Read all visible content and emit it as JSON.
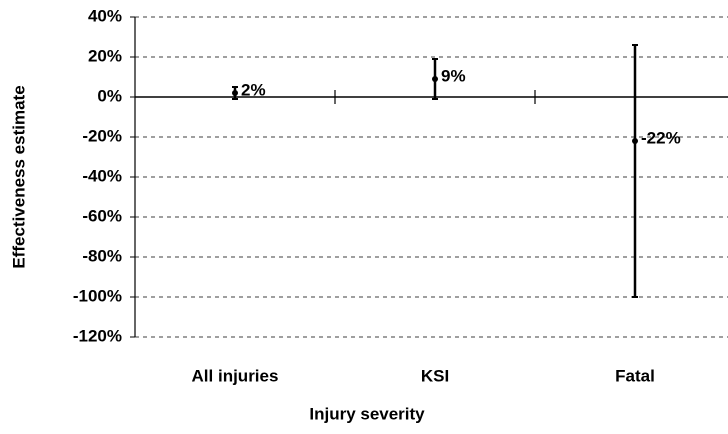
{
  "chart_data": {
    "type": "errorbar",
    "x_label": "Injury severity",
    "y_label": "Effectiveness estimate",
    "categories": [
      "All injuries",
      "KSI",
      "Fatal"
    ],
    "series": [
      {
        "color": "#000000",
        "values": [
          2,
          9,
          -22
        ],
        "value_labels": [
          "2%",
          "9%",
          "-22%"
        ],
        "lower": [
          -1,
          -1,
          -100
        ],
        "upper": [
          5,
          19,
          26
        ]
      }
    ],
    "ylim": [
      -120,
      40
    ],
    "yticks": [
      {
        "value": -120,
        "label": "-120%"
      },
      {
        "value": -100,
        "label": "-100%"
      },
      {
        "value": -80,
        "label": "-80%"
      },
      {
        "value": -60,
        "label": "-60%"
      },
      {
        "value": -40,
        "label": "-40%"
      },
      {
        "value": -20,
        "label": "-20%"
      },
      {
        "value": 0,
        "label": "0%"
      },
      {
        "value": 20,
        "label": "20%"
      },
      {
        "value": 40,
        "label": "40%"
      }
    ],
    "grid": true
  }
}
